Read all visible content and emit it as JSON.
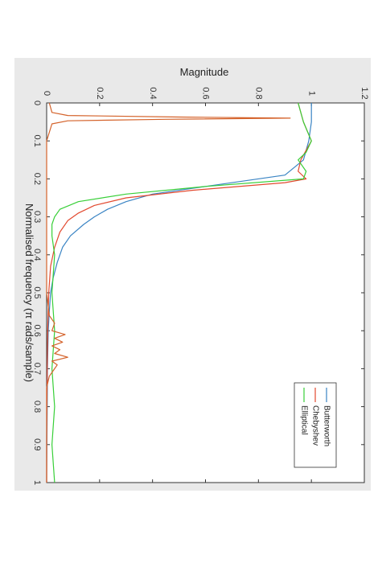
{
  "chart_data": {
    "type": "line",
    "title": "",
    "xlabel": "Normalised frequency (π rads/sample)",
    "ylabel": "Magnitude",
    "xlim": [
      0,
      1
    ],
    "ylim": [
      0,
      1.2
    ],
    "xticks": [
      "0",
      "0.1",
      "0.2",
      "0.3",
      "0.4",
      "0.5",
      "0.6",
      "0.7",
      "0.8",
      "0.9",
      "1"
    ],
    "yticks": [
      "0",
      "0.2",
      "0.4",
      "0.6",
      "0.8",
      "1",
      "1.2"
    ],
    "grid": false,
    "legend": "bottom-right",
    "orientation": "rotated 90° clockwise",
    "series": [
      {
        "name": "Butterworth",
        "color": "#3a84c4",
        "x": [
          0,
          0.05,
          0.1,
          0.15,
          0.19,
          0.22,
          0.24,
          0.26,
          0.28,
          0.3,
          0.32,
          0.35,
          0.38,
          0.42,
          0.46,
          0.5,
          0.55,
          0.6,
          0.7,
          0.8,
          0.9,
          1.0
        ],
        "y": [
          1.0,
          1.0,
          0.99,
          0.97,
          0.9,
          0.6,
          0.4,
          0.3,
          0.23,
          0.18,
          0.14,
          0.09,
          0.06,
          0.04,
          0.025,
          0.015,
          0.01,
          0.006,
          0.003,
          0.002,
          0.001,
          0.0
        ]
      },
      {
        "name": "Chebyshev",
        "color": "#e2492f",
        "x": [
          0,
          0.05,
          0.1,
          0.15,
          0.18,
          0.2,
          0.21,
          0.23,
          0.25,
          0.27,
          0.29,
          0.31,
          0.34,
          0.38,
          0.43,
          0.5,
          0.6,
          0.7,
          0.8,
          0.9,
          1.0
        ],
        "y": [
          0.95,
          0.97,
          1.0,
          0.96,
          0.95,
          0.98,
          0.9,
          0.55,
          0.3,
          0.18,
          0.12,
          0.08,
          0.05,
          0.03,
          0.015,
          0.008,
          0.004,
          0.002,
          0.001,
          0.0,
          0.0
        ]
      },
      {
        "name": "Elliptical",
        "color": "#38cf38",
        "x": [
          0,
          0.05,
          0.1,
          0.13,
          0.15,
          0.18,
          0.2,
          0.22,
          0.24,
          0.26,
          0.28,
          0.3,
          0.32,
          0.35,
          0.4,
          0.5,
          0.6,
          0.7,
          0.8,
          0.9,
          1.0
        ],
        "y": [
          0.95,
          0.97,
          1.0,
          0.98,
          0.95,
          0.98,
          0.97,
          0.6,
          0.3,
          0.12,
          0.05,
          0.03,
          0.02,
          0.02,
          0.03,
          0.02,
          0.03,
          0.02,
          0.03,
          0.02,
          0.03
        ]
      },
      {
        "name": "",
        "color": "#d4622a",
        "x": [
          0,
          0.025,
          0.033,
          0.037,
          0.04,
          0.043,
          0.047,
          0.055,
          0.1,
          0.3,
          0.5,
          0.56,
          0.58,
          0.6,
          0.61,
          0.62,
          0.63,
          0.64,
          0.65,
          0.66,
          0.67,
          0.68,
          0.69,
          0.7,
          0.72,
          0.75,
          0.8,
          0.9,
          1.0
        ],
        "y": [
          0.01,
          0.02,
          0.08,
          0.5,
          0.92,
          0.45,
          0.08,
          0.02,
          0.0,
          0.0,
          0.0,
          0.01,
          0.03,
          0.02,
          0.07,
          0.03,
          0.06,
          0.02,
          0.05,
          0.03,
          0.08,
          0.02,
          0.04,
          0.03,
          0.01,
          0.0,
          0.0,
          0.0,
          0.0
        ]
      }
    ]
  }
}
